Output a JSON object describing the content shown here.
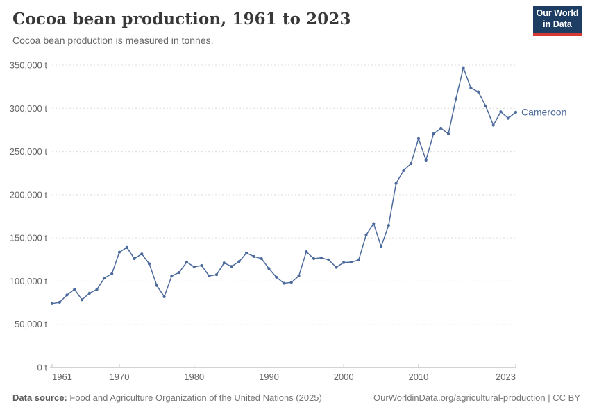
{
  "header": {
    "title": "Cocoa bean production, 1961 to 2023",
    "subtitle": "Cocoa bean production is measured in tonnes."
  },
  "logo": {
    "line1": "Our World",
    "line2": "in Data",
    "bg_color": "#1d3d63",
    "accent_color": "#d73a33"
  },
  "chart_data": {
    "type": "line",
    "title": "Cocoa bean production, 1961 to 2023",
    "ylabel": "",
    "xlabel": "",
    "unit": "t",
    "grid": "horizontal dashed",
    "legend_position": "end-of-line label",
    "xlim": [
      1961,
      2023
    ],
    "ylim": [
      0,
      350000
    ],
    "x_ticks": [
      1961,
      1970,
      1980,
      1990,
      2000,
      2010,
      2023
    ],
    "y_ticks": [
      0,
      50000,
      100000,
      150000,
      200000,
      250000,
      300000,
      350000
    ],
    "x": [
      1961,
      1962,
      1963,
      1964,
      1965,
      1966,
      1967,
      1968,
      1969,
      1970,
      1971,
      1972,
      1973,
      1974,
      1975,
      1976,
      1977,
      1978,
      1979,
      1980,
      1981,
      1982,
      1983,
      1984,
      1985,
      1986,
      1987,
      1988,
      1989,
      1990,
      1991,
      1992,
      1993,
      1994,
      1995,
      1996,
      1997,
      1998,
      1999,
      2000,
      2001,
      2002,
      2003,
      2004,
      2005,
      2006,
      2007,
      2008,
      2009,
      2010,
      2011,
      2012,
      2013,
      2014,
      2015,
      2016,
      2017,
      2018,
      2019,
      2020,
      2021,
      2022,
      2023
    ],
    "series": [
      {
        "name": "Cameroon",
        "color": "#4c6a9c",
        "values": [
          74000,
          75500,
          84000,
          90500,
          78500,
          86000,
          90500,
          103500,
          108500,
          133500,
          139000,
          126000,
          131500,
          120000,
          95000,
          82000,
          106000,
          110000,
          122000,
          116500,
          118000,
          106000,
          107500,
          121000,
          117000,
          122500,
          132500,
          128500,
          126000,
          114500,
          104500,
          97500,
          98500,
          106000,
          134000,
          126000,
          127000,
          124500,
          116000,
          121500,
          122000,
          124500,
          153500,
          166500,
          140000,
          164500,
          213000,
          228000,
          236000,
          265000,
          240000,
          270500,
          277000,
          270500,
          311000,
          347000,
          323500,
          319000,
          302500,
          280500,
          296000,
          288500,
          295500
        ]
      }
    ]
  },
  "footer": {
    "source_label": "Data source:",
    "source_text": "Food and Agriculture Organization of the United Nations (2025)",
    "credit_link": "OurWorldinData.org/agricultural-production",
    "credit_suffix": " | CC BY"
  }
}
